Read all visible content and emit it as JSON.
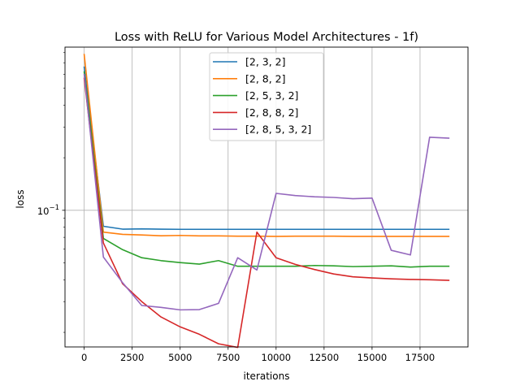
{
  "chart_data": {
    "type": "line",
    "title": "Loss with ReLU for Various Model Architectures - 1f)",
    "xlabel": "iterations",
    "ylabel": "loss",
    "yscale": "log",
    "xlim": [
      -1000,
      20000
    ],
    "ylim": [
      0.0165,
      0.86
    ],
    "grid": true,
    "legend_position": "top-center",
    "x_ticks": [
      {
        "value": 0,
        "label": "0"
      },
      {
        "value": 2500,
        "label": "2500"
      },
      {
        "value": 5000,
        "label": "5000"
      },
      {
        "value": 7500,
        "label": "7500"
      },
      {
        "value": 10000,
        "label": "10000"
      },
      {
        "value": 12500,
        "label": "12500"
      },
      {
        "value": 15000,
        "label": "15000"
      },
      {
        "value": 17500,
        "label": "17500"
      }
    ],
    "y_ticks": [
      {
        "value": 0.1,
        "label_base": "10",
        "label_exp": "−1"
      }
    ],
    "x": [
      0,
      1000,
      2000,
      3000,
      4000,
      5000,
      6000,
      7000,
      8000,
      9000,
      10000,
      11000,
      12000,
      13000,
      14000,
      15000,
      16000,
      17000,
      18000,
      19000
    ],
    "series": [
      {
        "name": "[2, 3, 2]",
        "color": "#1f77b4",
        "values": [
          0.66,
          0.081,
          0.078,
          0.0783,
          0.078,
          0.0778,
          0.0778,
          0.0778,
          0.0778,
          0.0778,
          0.0778,
          0.0778,
          0.0778,
          0.0778,
          0.0778,
          0.0778,
          0.0778,
          0.0778,
          0.0778,
          0.0778
        ]
      },
      {
        "name": "[2, 8, 2]",
        "color": "#ff7f0e",
        "values": [
          0.78,
          0.075,
          0.0728,
          0.0722,
          0.0715,
          0.0718,
          0.0714,
          0.0714,
          0.0711,
          0.0711,
          0.0709,
          0.0711,
          0.0711,
          0.0711,
          0.0709,
          0.0709,
          0.0709,
          0.0709,
          0.0709,
          0.0709
        ]
      },
      {
        "name": "[2, 5, 3, 2]",
        "color": "#2ca02c",
        "values": [
          0.62,
          0.069,
          0.0595,
          0.0535,
          0.0515,
          0.0502,
          0.0492,
          0.0515,
          0.0478,
          0.0478,
          0.0478,
          0.0478,
          0.0483,
          0.0481,
          0.0476,
          0.0478,
          0.0481,
          0.0473,
          0.0478,
          0.0478
        ]
      },
      {
        "name": "[2, 8, 8, 2]",
        "color": "#d62728",
        "values": [
          0.57,
          0.065,
          0.038,
          0.03,
          0.0245,
          0.0215,
          0.0195,
          0.0172,
          0.0164,
          0.075,
          0.0535,
          0.049,
          0.0458,
          0.0432,
          0.0416,
          0.041,
          0.0405,
          0.0402,
          0.04,
          0.0397
        ]
      },
      {
        "name": "[2, 8, 5, 3, 2]",
        "color": "#9467bd",
        "values": [
          0.6,
          0.054,
          0.0385,
          0.0285,
          0.0278,
          0.0269,
          0.027,
          0.0293,
          0.0535,
          0.0455,
          0.125,
          0.1215,
          0.1195,
          0.1185,
          0.1165,
          0.1175,
          0.059,
          0.0555,
          0.262,
          0.259
        ]
      }
    ]
  }
}
